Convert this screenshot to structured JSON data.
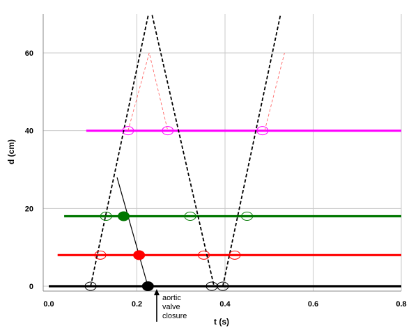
{
  "chart_data": {
    "type": "line",
    "title": "",
    "xlabel": "t (s)",
    "ylabel": "d (cm)",
    "xlim": [
      0,
      0.8
    ],
    "ylim": [
      0,
      70
    ],
    "x_ticks": [
      {
        "value": 0.0,
        "label": "0.0"
      },
      {
        "value": 0.2,
        "label": "0.2"
      },
      {
        "value": 0.4,
        "label": "0.4"
      },
      {
        "value": 0.6,
        "label": "0.6"
      },
      {
        "value": 0.8,
        "label": "0.8"
      }
    ],
    "y_ticks": [
      {
        "value": 0,
        "label": "0"
      },
      {
        "value": 20,
        "label": "20"
      },
      {
        "value": 40,
        "label": "40"
      },
      {
        "value": 60,
        "label": "60"
      }
    ],
    "grid": true,
    "colors": {
      "black": "#000000",
      "red": "#ff0000",
      "green": "#007700",
      "magenta": "#ff00ff",
      "guide": "#ff6666"
    },
    "series": [
      {
        "color_key": "black",
        "x": [
          0.0,
          0.8
        ],
        "y": [
          0,
          0
        ],
        "style": "solid-thick"
      },
      {
        "color_key": "red",
        "x": [
          0.02,
          0.8
        ],
        "y": [
          8,
          8
        ],
        "style": "solid-thick"
      },
      {
        "color_key": "green",
        "x": [
          0.035,
          0.8
        ],
        "y": [
          18,
          18
        ],
        "style": "solid-thick"
      },
      {
        "color_key": "magenta",
        "x": [
          0.085,
          0.8
        ],
        "y": [
          40,
          40
        ],
        "style": "solid-thick"
      },
      {
        "color_key": "black",
        "x": [
          0.095,
          0.23,
          0.375
        ],
        "y": [
          0,
          72,
          0
        ],
        "style": "dashed"
      },
      {
        "color_key": "black",
        "x": [
          0.395,
          0.53
        ],
        "y": [
          0,
          72
        ],
        "style": "dashed"
      },
      {
        "color_key": "guide",
        "x": [
          0.18,
          0.228,
          0.27
        ],
        "y": [
          40,
          60,
          40
        ],
        "style": "thin-dashed"
      },
      {
        "color_key": "guide",
        "x": [
          0.49,
          0.535
        ],
        "y": [
          40,
          60
        ],
        "style": "thin-dashed"
      },
      {
        "color_key": "black",
        "x": [
          0.155,
          0.225
        ],
        "y": [
          28,
          0
        ],
        "style": "solid-thin"
      }
    ],
    "open_markers": [
      {
        "color_key": "black",
        "x": 0.095,
        "y": 0
      },
      {
        "color_key": "black",
        "x": 0.37,
        "y": 0
      },
      {
        "color_key": "black",
        "x": 0.395,
        "y": 0
      },
      {
        "color_key": "red",
        "x": 0.117,
        "y": 8
      },
      {
        "color_key": "red",
        "x": 0.352,
        "y": 8
      },
      {
        "color_key": "red",
        "x": 0.422,
        "y": 8
      },
      {
        "color_key": "green",
        "x": 0.13,
        "y": 18
      },
      {
        "color_key": "green",
        "x": 0.321,
        "y": 18
      },
      {
        "color_key": "green",
        "x": 0.45,
        "y": 18
      },
      {
        "color_key": "magenta",
        "x": 0.18,
        "y": 40
      },
      {
        "color_key": "magenta",
        "x": 0.27,
        "y": 40
      },
      {
        "color_key": "magenta",
        "x": 0.485,
        "y": 40
      }
    ],
    "filled_markers": [
      {
        "color_key": "black",
        "x": 0.225,
        "y": 0
      },
      {
        "color_key": "red",
        "x": 0.205,
        "y": 8
      },
      {
        "color_key": "green",
        "x": 0.17,
        "y": 18
      }
    ],
    "annotations": [
      {
        "lines": [
          "aortic",
          "valve",
          "closure"
        ],
        "arrow_x": 0.245
      }
    ]
  }
}
